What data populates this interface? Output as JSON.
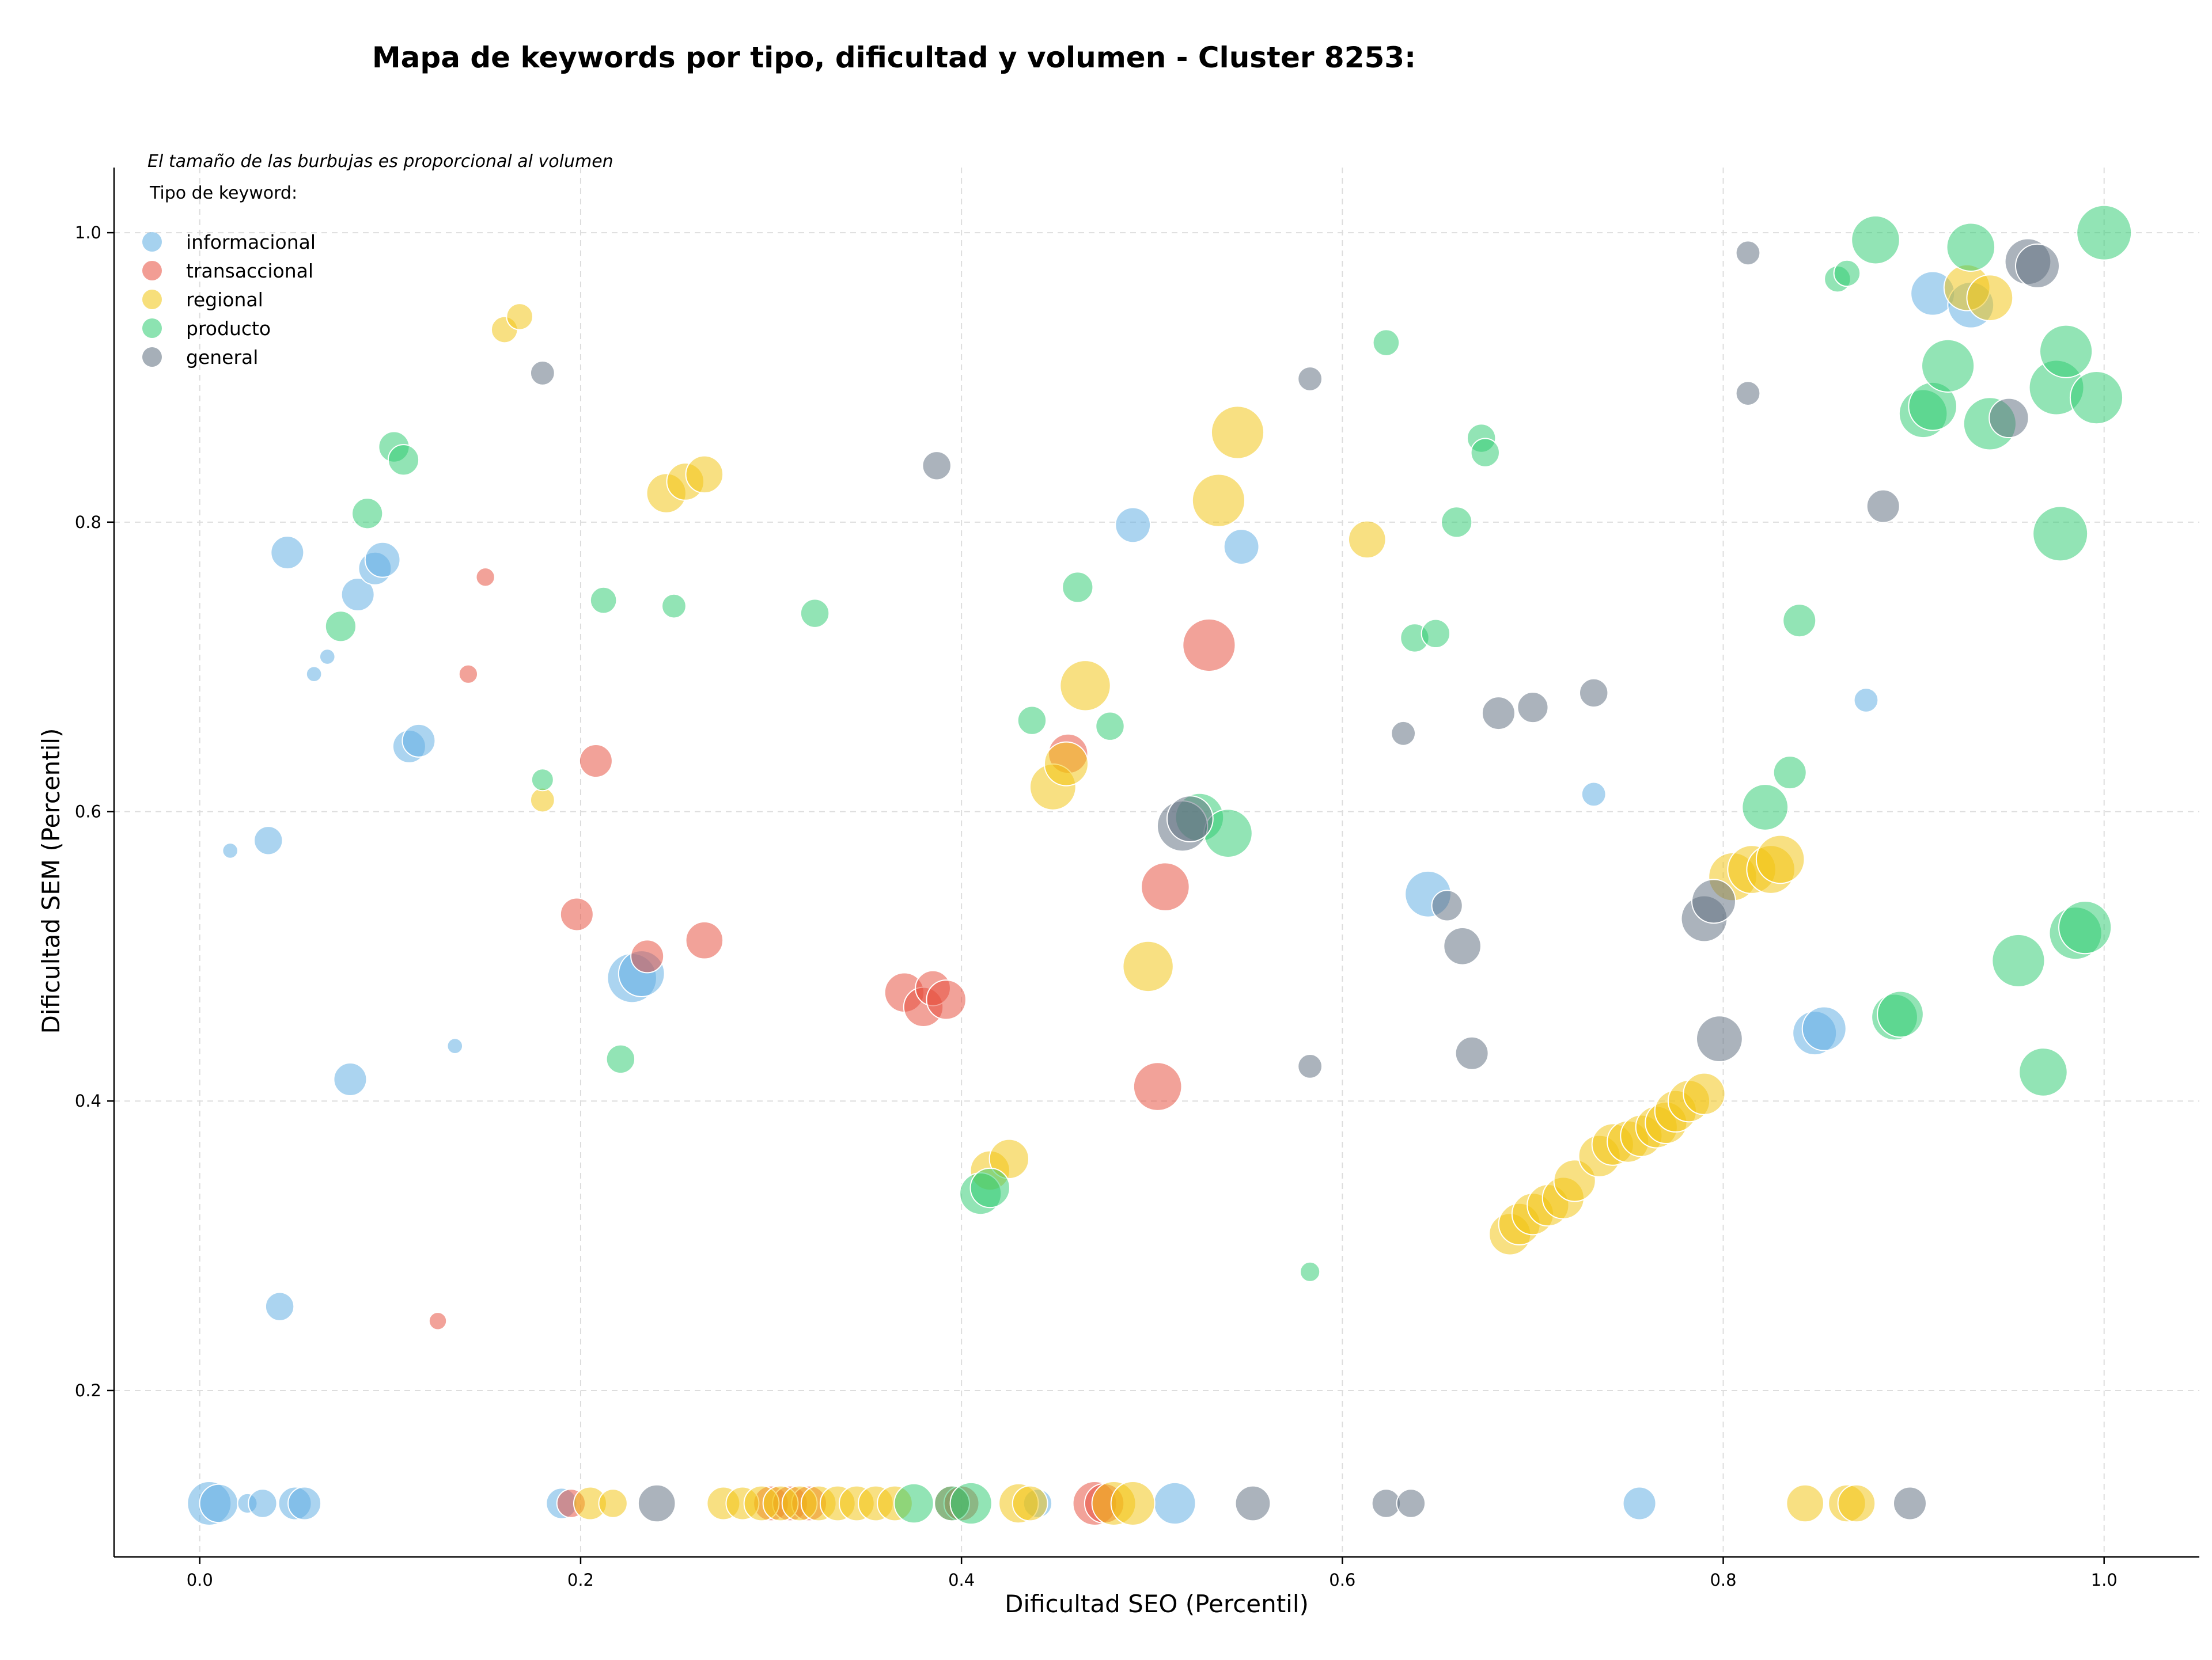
{
  "chart_data": {
    "type": "scatter",
    "title": "Mapa de keywords por tipo, dificultad y volumen - Cluster 8253:",
    "xlabel": "Dificultad SEO (Percentil)",
    "ylabel": "Dificultad SEM (Percentil)",
    "xlim": [
      -0.045,
      1.05
    ],
    "ylim": [
      0.085,
      1.045
    ],
    "xticks": [
      "0.0",
      "0.2",
      "0.4",
      "0.6",
      "0.8",
      "1.0"
    ],
    "yticks": [
      "0.2",
      "0.4",
      "0.6",
      "0.8",
      "1.0"
    ],
    "grid": true,
    "legend_title": "Tipo de keyword:",
    "legend_position": "top-left",
    "annotation": "El tamaño de las burbujas es proporcional al volumen",
    "series": [
      {
        "name": "informacional",
        "color": "#5dade2",
        "points": [
          [
            0.005,
            0.122,
            4
          ],
          [
            0.01,
            0.122,
            3.5
          ],
          [
            0.025,
            0.122,
            1.8
          ],
          [
            0.033,
            0.122,
            2.6
          ],
          [
            0.05,
            0.122,
            3
          ],
          [
            0.055,
            0.122,
            3
          ],
          [
            0.016,
            0.573,
            1.4
          ],
          [
            0.036,
            0.58,
            2.6
          ],
          [
            0.042,
            0.258,
            2.6
          ],
          [
            0.046,
            0.779,
            3
          ],
          [
            0.06,
            0.695,
            1.4
          ],
          [
            0.067,
            0.707,
            1.4
          ],
          [
            0.079,
            0.415,
            3
          ],
          [
            0.083,
            0.75,
            3
          ],
          [
            0.092,
            0.768,
            3
          ],
          [
            0.096,
            0.774,
            3.2
          ],
          [
            0.11,
            0.645,
            3
          ],
          [
            0.115,
            0.649,
            3
          ],
          [
            0.134,
            0.438,
            1.4
          ],
          [
            0.227,
            0.485,
            4.5
          ],
          [
            0.232,
            0.488,
            4.2
          ],
          [
            0.19,
            0.122,
            2.8
          ],
          [
            0.44,
            0.122,
            2.6
          ],
          [
            0.49,
            0.798,
            3.2
          ],
          [
            0.512,
            0.122,
            3.8
          ],
          [
            0.547,
            0.783,
            3.2
          ],
          [
            0.645,
            0.543,
            4.2
          ],
          [
            0.732,
            0.612,
            2.2
          ],
          [
            0.756,
            0.122,
            3
          ],
          [
            0.848,
            0.447,
            4
          ],
          [
            0.853,
            0.45,
            4
          ],
          [
            0.875,
            0.677,
            2.2
          ],
          [
            0.91,
            0.958,
            4
          ],
          [
            0.93,
            0.95,
            4.2
          ]
        ]
      },
      {
        "name": "transaccional",
        "color": "#e74c3c",
        "points": [
          [
            0.125,
            0.248,
            1.6
          ],
          [
            0.141,
            0.695,
            1.7
          ],
          [
            0.15,
            0.762,
            1.7
          ],
          [
            0.198,
            0.529,
            3
          ],
          [
            0.208,
            0.635,
            3
          ],
          [
            0.235,
            0.5,
            3
          ],
          [
            0.265,
            0.511,
            3.4
          ],
          [
            0.195,
            0.122,
            2.6
          ],
          [
            0.3,
            0.122,
            3.2
          ],
          [
            0.31,
            0.122,
            3.2
          ],
          [
            0.32,
            0.122,
            3.2
          ],
          [
            0.37,
            0.475,
            3.6
          ],
          [
            0.38,
            0.465,
            3.6
          ],
          [
            0.385,
            0.478,
            3.2
          ],
          [
            0.392,
            0.47,
            3.6
          ],
          [
            0.395,
            0.122,
            3.2
          ],
          [
            0.4,
            0.122,
            3.2
          ],
          [
            0.456,
            0.64,
            3.6
          ],
          [
            0.47,
            0.122,
            4
          ],
          [
            0.475,
            0.122,
            3.6
          ],
          [
            0.503,
            0.41,
            4.4
          ],
          [
            0.507,
            0.548,
            4.4
          ],
          [
            0.53,
            0.715,
            4.8
          ]
        ]
      },
      {
        "name": "regional",
        "color": "#f1c40f",
        "points": [
          [
            0.16,
            0.933,
            2.4
          ],
          [
            0.168,
            0.942,
            2.4
          ],
          [
            0.18,
            0.608,
            2.2
          ],
          [
            0.205,
            0.122,
            3
          ],
          [
            0.217,
            0.122,
            2.6
          ],
          [
            0.245,
            0.82,
            3.6
          ],
          [
            0.255,
            0.828,
            3.4
          ],
          [
            0.265,
            0.833,
            3.4
          ],
          [
            0.275,
            0.122,
            3
          ],
          [
            0.285,
            0.122,
            3
          ],
          [
            0.295,
            0.122,
            3.2
          ],
          [
            0.305,
            0.122,
            3.2
          ],
          [
            0.315,
            0.122,
            3.2
          ],
          [
            0.325,
            0.122,
            3.2
          ],
          [
            0.335,
            0.122,
            3.2
          ],
          [
            0.345,
            0.122,
            3.2
          ],
          [
            0.355,
            0.122,
            3.2
          ],
          [
            0.365,
            0.122,
            3.2
          ],
          [
            0.415,
            0.352,
            3.6
          ],
          [
            0.425,
            0.36,
            3.6
          ],
          [
            0.43,
            0.122,
            3.6
          ],
          [
            0.436,
            0.122,
            3.2
          ],
          [
            0.448,
            0.617,
            4.2
          ],
          [
            0.455,
            0.633,
            4
          ],
          [
            0.465,
            0.687,
            4.6
          ],
          [
            0.48,
            0.122,
            4
          ],
          [
            0.49,
            0.122,
            4
          ],
          [
            0.498,
            0.493,
            4.6
          ],
          [
            0.535,
            0.815,
            4.8
          ],
          [
            0.545,
            0.862,
            4.8
          ],
          [
            0.613,
            0.788,
            3.4
          ],
          [
            0.688,
            0.308,
            3.8
          ],
          [
            0.693,
            0.315,
            3.8
          ],
          [
            0.7,
            0.322,
            3.8
          ],
          [
            0.708,
            0.328,
            3.8
          ],
          [
            0.716,
            0.333,
            3.8
          ],
          [
            0.722,
            0.345,
            3.8
          ],
          [
            0.735,
            0.362,
            3.8
          ],
          [
            0.742,
            0.37,
            3.8
          ],
          [
            0.75,
            0.372,
            3.8
          ],
          [
            0.757,
            0.376,
            3.8
          ],
          [
            0.765,
            0.382,
            3.8
          ],
          [
            0.77,
            0.385,
            3.8
          ],
          [
            0.775,
            0.393,
            3.8
          ],
          [
            0.782,
            0.4,
            3.8
          ],
          [
            0.79,
            0.405,
            3.8
          ],
          [
            0.805,
            0.555,
            4.4
          ],
          [
            0.815,
            0.56,
            4.4
          ],
          [
            0.825,
            0.56,
            4.4
          ],
          [
            0.83,
            0.567,
            4.4
          ],
          [
            0.843,
            0.122,
            3.4
          ],
          [
            0.865,
            0.122,
            3.4
          ],
          [
            0.87,
            0.122,
            3.4
          ],
          [
            0.928,
            0.962,
            4.2
          ],
          [
            0.94,
            0.955,
            4.2
          ]
        ]
      },
      {
        "name": "producto",
        "color": "#2ecc71",
        "points": [
          [
            0.074,
            0.728,
            2.8
          ],
          [
            0.088,
            0.806,
            2.8
          ],
          [
            0.102,
            0.852,
            2.8
          ],
          [
            0.107,
            0.843,
            2.8
          ],
          [
            0.18,
            0.622,
            2
          ],
          [
            0.212,
            0.746,
            2.4
          ],
          [
            0.221,
            0.429,
            2.6
          ],
          [
            0.249,
            0.742,
            2.2
          ],
          [
            0.323,
            0.737,
            2.6
          ],
          [
            0.375,
            0.122,
            3.6
          ],
          [
            0.395,
            0.122,
            3.2
          ],
          [
            0.405,
            0.122,
            3.8
          ],
          [
            0.41,
            0.336,
            3.8
          ],
          [
            0.415,
            0.34,
            3.6
          ],
          [
            0.437,
            0.663,
            2.6
          ],
          [
            0.461,
            0.755,
            2.8
          ],
          [
            0.478,
            0.659,
            2.6
          ],
          [
            0.525,
            0.596,
            4.4
          ],
          [
            0.54,
            0.585,
            4.4
          ],
          [
            0.583,
            0.282,
            1.8
          ],
          [
            0.623,
            0.924,
            2.4
          ],
          [
            0.638,
            0.72,
            2.6
          ],
          [
            0.649,
            0.723,
            2.6
          ],
          [
            0.66,
            0.8,
            2.8
          ],
          [
            0.673,
            0.858,
            2.6
          ],
          [
            0.675,
            0.848,
            2.6
          ],
          [
            0.822,
            0.603,
            4.2
          ],
          [
            0.835,
            0.627,
            3
          ],
          [
            0.84,
            0.732,
            3
          ],
          [
            0.86,
            0.968,
            2.4
          ],
          [
            0.865,
            0.972,
            2.4
          ],
          [
            0.88,
            0.995,
            4.4
          ],
          [
            0.89,
            0.458,
            4.2
          ],
          [
            0.893,
            0.46,
            4.2
          ],
          [
            0.905,
            0.875,
            4.4
          ],
          [
            0.91,
            0.88,
            4.4
          ],
          [
            0.918,
            0.908,
            4.8
          ],
          [
            0.93,
            0.99,
            4.4
          ],
          [
            0.94,
            0.868,
            4.8
          ],
          [
            0.955,
            0.497,
            4.8
          ],
          [
            0.968,
            0.42,
            4.4
          ],
          [
            0.975,
            0.893,
            5
          ],
          [
            0.977,
            0.792,
            5
          ],
          [
            0.98,
            0.918,
            4.8
          ],
          [
            0.985,
            0.516,
            4.8
          ],
          [
            0.99,
            0.52,
            4.8
          ],
          [
            0.996,
            0.886,
            4.8
          ],
          [
            1.0,
            1.0,
            5
          ]
        ]
      },
      {
        "name": "general",
        "color": "#5d6d7e",
        "points": [
          [
            0.18,
            0.903,
            2.2
          ],
          [
            0.24,
            0.122,
            3.4
          ],
          [
            0.387,
            0.839,
            2.6
          ],
          [
            0.553,
            0.122,
            3.2
          ],
          [
            0.516,
            0.59,
            4.6
          ],
          [
            0.52,
            0.595,
            4.2
          ],
          [
            0.583,
            0.899,
            2.2
          ],
          [
            0.583,
            0.424,
            2.2
          ],
          [
            0.623,
            0.122,
            2.6
          ],
          [
            0.632,
            0.654,
            2.2
          ],
          [
            0.636,
            0.122,
            2.6
          ],
          [
            0.655,
            0.535,
            2.8
          ],
          [
            0.663,
            0.507,
            3.4
          ],
          [
            0.668,
            0.433,
            3
          ],
          [
            0.682,
            0.668,
            3
          ],
          [
            0.7,
            0.672,
            2.8
          ],
          [
            0.732,
            0.682,
            2.6
          ],
          [
            0.79,
            0.526,
            4.2
          ],
          [
            0.795,
            0.538,
            4
          ],
          [
            0.798,
            0.443,
            4.2
          ],
          [
            0.813,
            0.986,
            2.2
          ],
          [
            0.813,
            0.889,
            2.2
          ],
          [
            0.884,
            0.811,
            3
          ],
          [
            0.898,
            0.122,
            3
          ],
          [
            0.95,
            0.872,
            3.6
          ],
          [
            0.96,
            0.98,
            4.2
          ],
          [
            0.965,
            0.977,
            4
          ]
        ]
      }
    ]
  }
}
